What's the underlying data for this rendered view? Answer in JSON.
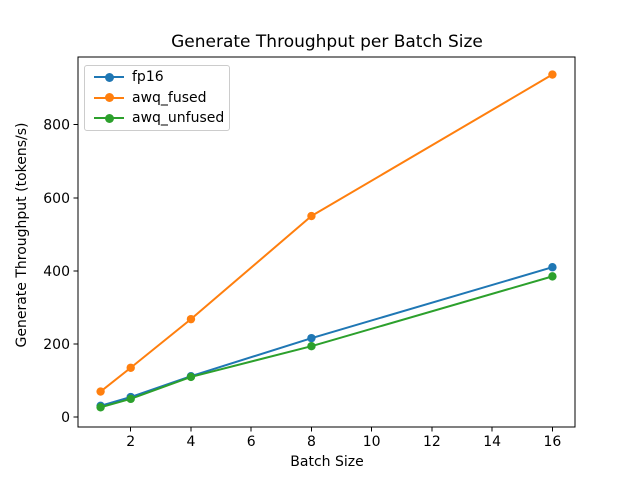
{
  "chart_data": {
    "type": "line",
    "title": "Generate Throughput per Batch Size",
    "xlabel": "Batch Size",
    "ylabel": "Generate Throughput (tokens/s)",
    "x": [
      1,
      2,
      4,
      8,
      16
    ],
    "series": [
      {
        "name": "fp16",
        "color": "#1f77b4",
        "values": [
          31,
          55,
          112,
          216,
          410
        ]
      },
      {
        "name": "awq_fused",
        "color": "#ff7f0e",
        "values": [
          70,
          135,
          268,
          550,
          937
        ]
      },
      {
        "name": "awq_unfused",
        "color": "#2ca02c",
        "values": [
          27,
          50,
          110,
          194,
          385
        ]
      }
    ],
    "xticks": [
      2,
      4,
      6,
      8,
      10,
      12,
      14,
      16
    ],
    "yticks": [
      0,
      200,
      400,
      600,
      800
    ],
    "xlim": [
      0.25,
      16.75
    ],
    "ylim": [
      -27,
      985
    ],
    "grid": false,
    "marker": "circle",
    "legend_position": "upper-left"
  }
}
